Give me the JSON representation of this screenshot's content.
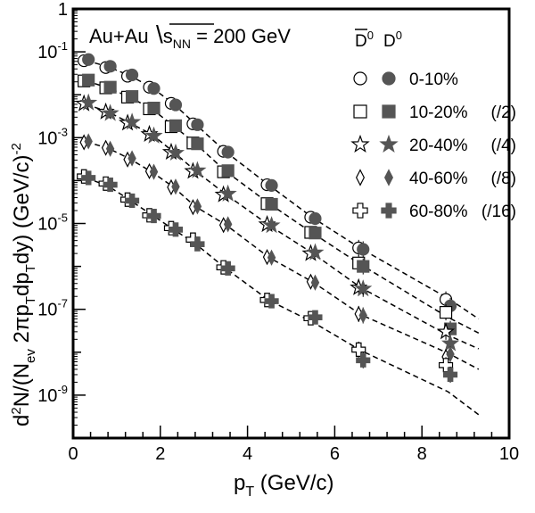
{
  "chart_data": {
    "type": "scatter",
    "title": "",
    "system_label": "Au+Au",
    "energy_label": {
      "main": "s",
      "sub": "NN",
      "rest": " = 200 GeV"
    },
    "xlabel": {
      "main": "p",
      "sub": "T",
      "rest": " (GeV/c)"
    },
    "ylabel": {
      "parts": [
        {
          "t": "d",
          "s": "n"
        },
        {
          "t": "2",
          "s": "sup"
        },
        {
          "t": "N/(N",
          "s": "n"
        },
        {
          "t": "ev",
          "s": "sub"
        },
        {
          "t": " 2πp",
          "s": "n"
        },
        {
          "t": "T",
          "s": "sub"
        },
        {
          "t": "dp",
          "s": "n"
        },
        {
          "t": "T",
          "s": "sub"
        },
        {
          "t": "dy)  (GeV/c)",
          "s": "n"
        },
        {
          "t": "-2",
          "s": "sup"
        }
      ]
    },
    "xlim": [
      0,
      10
    ],
    "ylim": [
      1e-10,
      1
    ],
    "yscale": "log",
    "x_ticks": [
      "0",
      "2",
      "4",
      "6",
      "8",
      "10"
    ],
    "y_ticks": [
      {
        "base": "1",
        "exp": ""
      },
      {
        "base": "10",
        "exp": "-1"
      },
      {
        "base": "10",
        "exp": "-3"
      },
      {
        "base": "10",
        "exp": "-5"
      },
      {
        "base": "10",
        "exp": "-7"
      },
      {
        "base": "10",
        "exp": "-9"
      }
    ],
    "legend": {
      "position": "top-right",
      "header_dbar": "D",
      "header_dbar_sup": "0",
      "header_d": "D",
      "header_d_sup": "0",
      "entries": [
        {
          "marker": "circle",
          "label": "0-10%"
        },
        {
          "marker": "square",
          "label": "10-20%",
          "scale": "(/2)"
        },
        {
          "marker": "star",
          "label": "20-40%",
          "scale": "(/4)"
        },
        {
          "marker": "diamond",
          "label": "40-60%",
          "scale": "(/8)"
        },
        {
          "marker": "cross",
          "label": "60-80%",
          "scale": "(/16)"
        }
      ]
    },
    "x": [
      0.3,
      0.8,
      1.3,
      1.8,
      2.3,
      2.8,
      3.5,
      4.5,
      5.5,
      6.6,
      8.6
    ],
    "series": [
      {
        "name": "0-10%",
        "marker": "circle",
        "dbar": [
          0.062,
          0.043,
          0.027,
          0.015,
          0.0063,
          0.0021,
          0.00048,
          8e-05,
          1.4e-05,
          2.7e-06,
          1.7e-07
        ],
        "d": [
          0.066,
          0.046,
          0.029,
          0.014,
          0.0058,
          0.002,
          0.00046,
          7.7e-05,
          1.3e-05,
          2.5e-06,
          1.2e-07
        ],
        "fit": [
          0.063,
          0.045,
          0.028,
          0.0148,
          0.0062,
          0.0021,
          0.00047,
          7.7e-05,
          1.35e-05,
          2.6e-06,
          1.8e-07,
          6e-08
        ]
      },
      {
        "name": "10-20%",
        "marker": "square",
        "dbar": [
          0.021,
          0.0145,
          0.0088,
          0.0047,
          0.0018,
          0.00075,
          0.00016,
          2.9e-05,
          6.2e-06,
          1.2e-06,
          8.5e-08
        ],
        "d": [
          0.022,
          0.015,
          0.0091,
          0.0049,
          0.0019,
          0.00072,
          0.00017,
          2.8e-05,
          6e-06,
          1e-06,
          3.5e-08
        ],
        "fit": [
          0.021,
          0.0145,
          0.0088,
          0.0047,
          0.0019,
          0.00074,
          0.000165,
          2.9e-05,
          5.9e-06,
          1.1e-06,
          6.5e-08,
          2.8e-08
        ]
      },
      {
        "name": "20-40%",
        "marker": "star",
        "dbar": [
          0.0062,
          0.004,
          0.0022,
          0.0012,
          0.00046,
          0.000165,
          4.7e-05,
          9.5e-06,
          2e-06,
          3.2e-07,
          3e-08
        ],
        "d": [
          0.0065,
          0.0037,
          0.0023,
          0.0011,
          0.00044,
          0.000172,
          4.9e-05,
          9e-06,
          2.1e-06,
          3e-07,
          1.6e-08
        ],
        "fit": [
          0.006,
          0.004,
          0.0022,
          0.0012,
          0.00047,
          0.00017,
          4.8e-05,
          9e-06,
          2e-06,
          3.2e-07,
          2.5e-08,
          1.2e-08
        ]
      },
      {
        "name": "40-60%",
        "marker": "diamond",
        "dbar": [
          0.00078,
          0.00058,
          0.00031,
          0.000165,
          7e-05,
          2.4e-05,
          9.2e-06,
          1.65e-06,
          4.4e-07,
          7.8e-08,
          7.8e-09
        ],
        "d": [
          0.00082,
          0.00055,
          0.00033,
          0.00016,
          7.2e-05,
          2.5e-05,
          9.6e-06,
          1.6e-06,
          4.2e-07,
          7.2e-08,
          9e-09
        ],
        "fit": [
          0.0008,
          0.00057,
          0.00032,
          0.00016,
          7.1e-05,
          2.5e-05,
          9.4e-06,
          1.6e-06,
          4.3e-07,
          7.5e-08,
          9.5e-09,
          4e-09
        ]
      },
      {
        "name": "60-80%",
        "marker": "cross",
        "dbar": [
          0.000125,
          8.5e-05,
          3.6e-05,
          1.55e-05,
          7.8e-06,
          4.2e-06,
          9.5e-07,
          1.65e-07,
          6.2e-08,
          1.15e-08,
          5e-09
        ],
        "d": [
          0.000115,
          8e-05,
          3.4e-05,
          1.5e-05,
          7.2e-06,
          3.3e-06,
          9e-07,
          1.55e-07,
          6.5e-08,
          6.5e-09,
          3e-09
        ],
        "fit": [
          0.000115,
          7.5e-05,
          3.5e-05,
          1.6e-05,
          7.3e-06,
          3.4e-06,
          9e-07,
          1.6e-07,
          5e-08,
          1.1e-08,
          1.2e-09,
          3.5e-10
        ]
      }
    ],
    "fit_x": [
      0.3,
      0.8,
      1.3,
      1.8,
      2.3,
      2.8,
      3.5,
      4.5,
      5.5,
      6.6,
      8.6,
      9.3
    ],
    "colors": {
      "frame": "#000000",
      "open_marker": "#000000",
      "filled_marker": "#555555",
      "error_bar": "#000000",
      "fit_line": "#000000"
    },
    "grid": false
  }
}
